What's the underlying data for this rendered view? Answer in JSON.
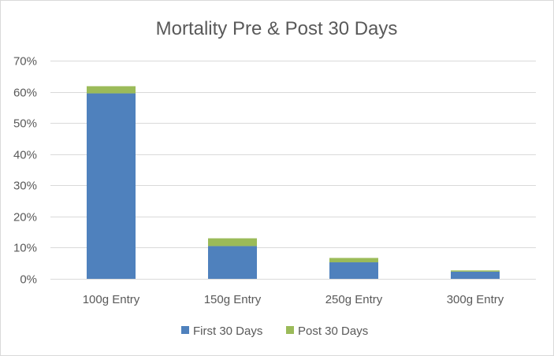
{
  "chart_data": {
    "type": "bar",
    "stacked": true,
    "title": "Mortality Pre & Post 30 Days",
    "categories": [
      "100g Entry",
      "150g Entry",
      "250g Entry",
      "300g Entry"
    ],
    "series": [
      {
        "name": "First 30 Days",
        "values": [
          59.5,
          10.5,
          5.3,
          2.3
        ],
        "color": "#4f81bd"
      },
      {
        "name": "Post 30 Days",
        "values": [
          2.3,
          2.5,
          1.4,
          0.4
        ],
        "color": "#9bbb59"
      }
    ],
    "ylim": [
      0,
      70
    ],
    "yticks": [
      "0%",
      "10%",
      "20%",
      "30%",
      "40%",
      "50%",
      "60%",
      "70%"
    ],
    "ytick_values": [
      0,
      10,
      20,
      30,
      40,
      50,
      60,
      70
    ],
    "grid": true,
    "legend_position": "bottom",
    "gridline_color": "#d9d9d9"
  }
}
